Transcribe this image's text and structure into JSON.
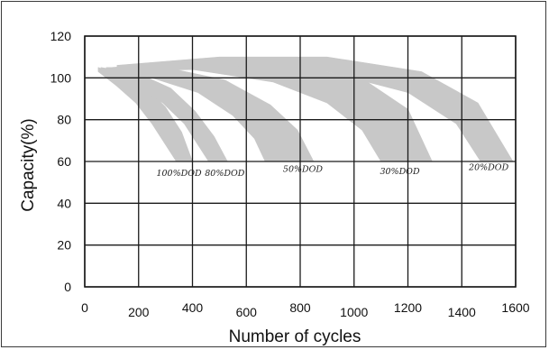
{
  "chart_data": {
    "type": "area",
    "xlabel": "Number of cycles",
    "ylabel": "Capacity(%)",
    "xlim": [
      0,
      1600
    ],
    "ylim": [
      0,
      120
    ],
    "xticks": [
      0,
      200,
      400,
      600,
      800,
      1000,
      1200,
      1400,
      1600
    ],
    "yticks": [
      0,
      20,
      40,
      60,
      80,
      100,
      120
    ],
    "grid": true,
    "band_color": "#c8c8c8",
    "grid_color": "#1a1a1a",
    "series": [
      {
        "name": "100%DOD",
        "upper": [
          [
            50,
            105
          ],
          [
            150,
            100
          ],
          [
            230,
            95
          ],
          [
            300,
            86
          ],
          [
            360,
            74
          ],
          [
            400,
            60
          ]
        ],
        "lower": [
          [
            50,
            103
          ],
          [
            120,
            96
          ],
          [
            190,
            88
          ],
          [
            250,
            78
          ],
          [
            300,
            68
          ],
          [
            340,
            60
          ]
        ]
      },
      {
        "name": "80%DOD",
        "upper": [
          [
            60,
            105
          ],
          [
            200,
            102
          ],
          [
            320,
            95
          ],
          [
            410,
            84
          ],
          [
            480,
            72
          ],
          [
            530,
            60
          ]
        ],
        "lower": [
          [
            60,
            103
          ],
          [
            180,
            97
          ],
          [
            290,
            88
          ],
          [
            370,
            78
          ],
          [
            420,
            68
          ],
          [
            460,
            60
          ]
        ]
      },
      {
        "name": "50%DOD",
        "upper": [
          [
            80,
            105
          ],
          [
            300,
            105
          ],
          [
            520,
            99
          ],
          [
            690,
            87
          ],
          [
            790,
            75
          ],
          [
            850,
            60
          ]
        ],
        "lower": [
          [
            80,
            103
          ],
          [
            250,
            100
          ],
          [
            420,
            93
          ],
          [
            550,
            82
          ],
          [
            630,
            71
          ],
          [
            670,
            60
          ]
        ]
      },
      {
        "name": "30%DOD",
        "upper": [
          [
            100,
            105
          ],
          [
            450,
            108
          ],
          [
            800,
            106
          ],
          [
            1050,
            98
          ],
          [
            1200,
            85
          ],
          [
            1290,
            60
          ]
        ],
        "lower": [
          [
            100,
            103
          ],
          [
            400,
            104
          ],
          [
            700,
            98
          ],
          [
            900,
            88
          ],
          [
            1030,
            75
          ],
          [
            1100,
            60
          ]
        ]
      },
      {
        "name": "20%DOD",
        "upper": [
          [
            120,
            106
          ],
          [
            500,
            110
          ],
          [
            900,
            110
          ],
          [
            1250,
            103
          ],
          [
            1460,
            88
          ],
          [
            1590,
            60
          ]
        ],
        "lower": [
          [
            120,
            104
          ],
          [
            500,
            106
          ],
          [
            900,
            103
          ],
          [
            1200,
            93
          ],
          [
            1380,
            78
          ],
          [
            1470,
            60
          ]
        ]
      }
    ],
    "labels": [
      {
        "text": "100%DOD",
        "x": 350,
        "y": 53
      },
      {
        "text": "80%DOD",
        "x": 520,
        "y": 53
      },
      {
        "text": "50%DOD",
        "x": 810,
        "y": 55
      },
      {
        "text": "30%DOD",
        "x": 1170,
        "y": 54
      },
      {
        "text": "20%DOD",
        "x": 1500,
        "y": 56
      }
    ]
  }
}
